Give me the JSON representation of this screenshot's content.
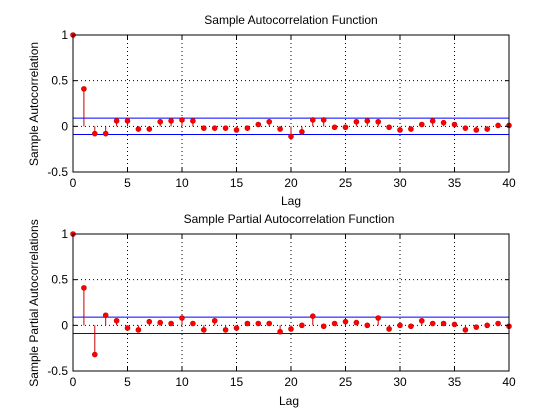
{
  "chart_data": [
    {
      "type": "stem",
      "title": "Sample Autocorrelation Function",
      "xlabel": "Lag",
      "ylabel": "Sample Autocorrelation",
      "xlim": [
        0,
        40
      ],
      "ylim": [
        -0.5,
        1
      ],
      "xticks": [
        0,
        5,
        10,
        15,
        20,
        25,
        30,
        35,
        40
      ],
      "yticks": [
        -0.5,
        0,
        0.5,
        1
      ],
      "grid": true,
      "stem_color": "#cc0000",
      "marker_color": "#ff0000",
      "bounds_color": "#0000ff",
      "bounds": [
        0.09,
        -0.09
      ],
      "x": [
        0,
        1,
        2,
        3,
        4,
        5,
        6,
        7,
        8,
        9,
        10,
        11,
        12,
        13,
        14,
        15,
        16,
        17,
        18,
        19,
        20,
        21,
        22,
        23,
        24,
        25,
        26,
        27,
        28,
        29,
        30,
        31,
        32,
        33,
        34,
        35,
        36,
        37,
        38,
        39,
        40
      ],
      "values": [
        1.0,
        0.41,
        -0.08,
        -0.08,
        0.06,
        0.06,
        -0.03,
        -0.03,
        0.05,
        0.06,
        0.07,
        0.06,
        -0.02,
        -0.02,
        -0.02,
        -0.04,
        -0.02,
        0.02,
        0.05,
        -0.03,
        -0.11,
        -0.06,
        0.07,
        0.07,
        -0.01,
        -0.01,
        0.05,
        0.06,
        0.05,
        -0.01,
        -0.04,
        -0.03,
        0.02,
        0.06,
        0.04,
        0.02,
        -0.02,
        -0.04,
        -0.03,
        0.01,
        0.01
      ]
    },
    {
      "type": "stem",
      "title": "Sample Partial Autocorrelation Function",
      "xlabel": "Lag",
      "ylabel": "Sample Partial Autocorrelations",
      "xlim": [
        0,
        40
      ],
      "ylim": [
        -0.5,
        1
      ],
      "xticks": [
        0,
        5,
        10,
        15,
        20,
        25,
        30,
        35,
        40
      ],
      "yticks": [
        -0.5,
        0,
        0.5,
        1
      ],
      "grid": true,
      "stem_color": "#cc0000",
      "marker_color": "#ff0000",
      "bounds_color": "#0000ff",
      "bounds": [
        0.09,
        -0.09
      ],
      "x": [
        0,
        1,
        2,
        3,
        4,
        5,
        6,
        7,
        8,
        9,
        10,
        11,
        12,
        13,
        14,
        15,
        16,
        17,
        18,
        19,
        20,
        21,
        22,
        23,
        24,
        25,
        26,
        27,
        28,
        29,
        30,
        31,
        32,
        33,
        34,
        35,
        36,
        37,
        38,
        39,
        40
      ],
      "values": [
        1.0,
        0.41,
        -0.32,
        0.11,
        0.05,
        -0.03,
        -0.05,
        0.04,
        0.03,
        0.02,
        0.08,
        0.02,
        -0.05,
        0.05,
        -0.05,
        -0.03,
        0.02,
        0.02,
        0.02,
        -0.07,
        -0.04,
        0.0,
        0.1,
        -0.01,
        0.02,
        0.04,
        0.03,
        0.0,
        0.08,
        -0.04,
        0.0,
        -0.01,
        0.05,
        0.02,
        0.02,
        0.01,
        -0.05,
        -0.02,
        0.0,
        0.02,
        -0.01
      ]
    }
  ]
}
